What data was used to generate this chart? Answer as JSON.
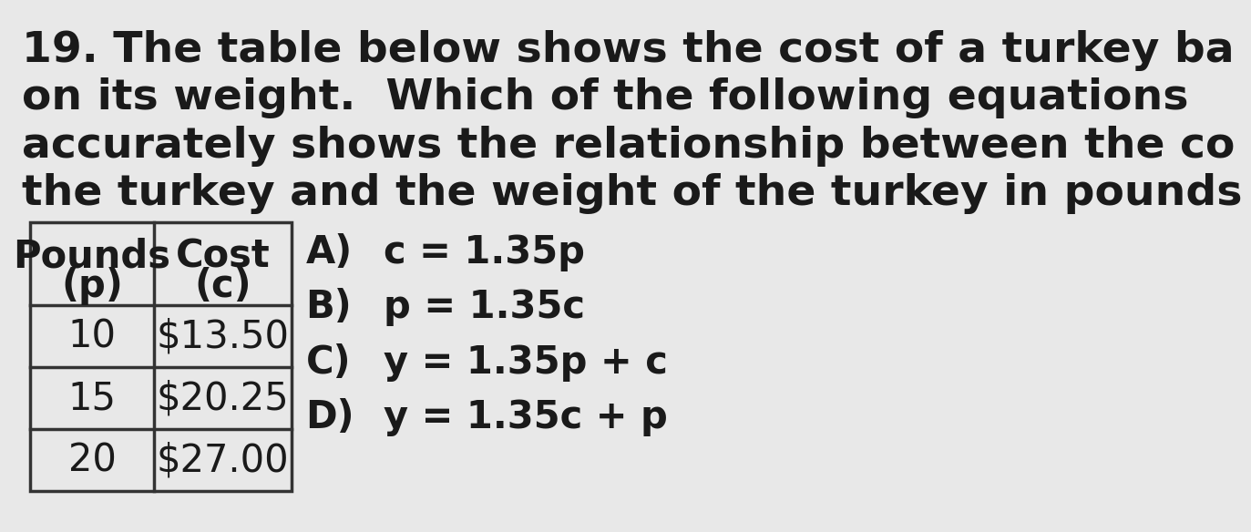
{
  "background_color": "#e8e8e8",
  "question_text_lines": [
    "19. The table below shows the cost of a turkey ba",
    "on its weight.  Which of the following equations",
    "accurately shows the relationship between the co",
    "the turkey and the weight of the turkey in pounds"
  ],
  "table_headers_line1": [
    "Pounds",
    "Cost"
  ],
  "table_headers_line2": [
    "(p)",
    "(c)"
  ],
  "table_rows": [
    [
      "10",
      "$13.50"
    ],
    [
      "15",
      "$20.25"
    ],
    [
      "20",
      "$27.00"
    ]
  ],
  "options": [
    [
      "A)",
      "c = 1.35p"
    ],
    [
      "B)",
      "p = 1.35c"
    ],
    [
      "C)",
      "y = 1.35p + c"
    ],
    [
      "D)",
      "y = 1.35c + p"
    ]
  ],
  "font_size_question": 34,
  "font_size_table": 30,
  "font_size_options": 30,
  "text_color": "#1a1a1a",
  "table_bg": "#e8e8e8",
  "border_color": "#333333"
}
